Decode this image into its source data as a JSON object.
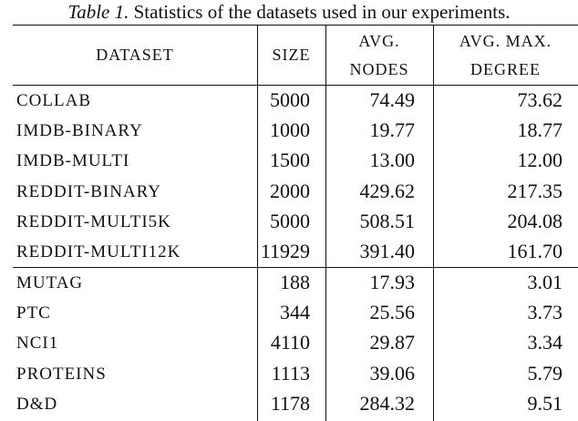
{
  "caption": {
    "label": "Table 1.",
    "text": "Statistics of the datasets used in our experiments."
  },
  "table": {
    "header": [
      [
        "DATASET"
      ],
      [
        "SIZE"
      ],
      [
        "AVG.",
        "NODES"
      ],
      [
        "AVG. MAX.",
        "DEGREE"
      ]
    ],
    "groups": [
      [
        [
          "COLLAB",
          "5000",
          "74.49",
          "73.62"
        ],
        [
          "IMDB-BINARY",
          "1000",
          "19.77",
          "18.77"
        ],
        [
          "IMDB-MULTI",
          "1500",
          "13.00",
          "12.00"
        ],
        [
          "REDDIT-BINARY",
          "2000",
          "429.62",
          "217.35"
        ],
        [
          "REDDIT-MULTI5K",
          "5000",
          "508.51",
          "204.08"
        ],
        [
          "REDDIT-MULTI12K",
          "11929",
          "391.40",
          "161.70"
        ]
      ],
      [
        [
          "MUTAG",
          "188",
          "17.93",
          "3.01"
        ],
        [
          "PTC",
          "344",
          "25.56",
          "3.73"
        ],
        [
          "NCI1",
          "4110",
          "29.87",
          "3.34"
        ],
        [
          "PROTEINS",
          "1113",
          "39.06",
          "5.79"
        ],
        [
          "D&D",
          "1178",
          "284.32",
          "9.51"
        ]
      ]
    ]
  }
}
